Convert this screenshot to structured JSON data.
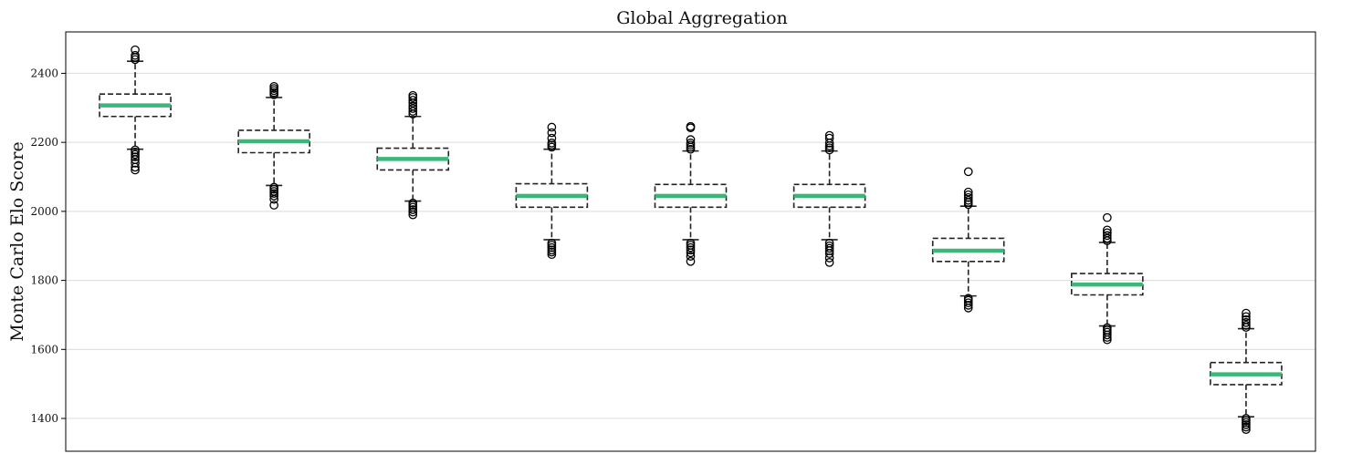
{
  "chart_data": {
    "type": "box",
    "title": "Global Aggregation",
    "xlabel": "",
    "ylabel": "Monte Carlo Elo Score",
    "ylim": [
      1305,
      2520
    ],
    "yticks": [
      1400,
      1600,
      1800,
      2000,
      2200,
      2400
    ],
    "grid": "horizontal",
    "median_color": "#3cb77a",
    "boxes": [
      {
        "q1": 2275,
        "median": 2307,
        "q3": 2340,
        "whisker_low": 2180,
        "whisker_high": 2435,
        "outliers": [
          2120,
          2128,
          2140,
          2150,
          2158,
          2165,
          2172,
          2178,
          2440,
          2446,
          2452,
          2468
        ]
      },
      {
        "q1": 2170,
        "median": 2203,
        "q3": 2235,
        "whisker_low": 2075,
        "whisker_high": 2330,
        "outliers": [
          2018,
          2035,
          2045,
          2052,
          2058,
          2064,
          2070,
          2338,
          2344,
          2350,
          2356,
          2362
        ]
      },
      {
        "q1": 2120,
        "median": 2152,
        "q3": 2183,
        "whisker_low": 2030,
        "whisker_high": 2275,
        "outliers": [
          1990,
          1998,
          2005,
          2012,
          2018,
          2024,
          2282,
          2290,
          2298,
          2305,
          2314,
          2322,
          2330,
          2336
        ]
      },
      {
        "q1": 2012,
        "median": 2045,
        "q3": 2080,
        "whisker_low": 1918,
        "whisker_high": 2180,
        "outliers": [
          1875,
          1882,
          1888,
          1895,
          1902,
          1908,
          2186,
          2192,
          2198,
          2212,
          2228,
          2244
        ]
      },
      {
        "q1": 2012,
        "median": 2045,
        "q3": 2078,
        "whisker_low": 1918,
        "whisker_high": 2175,
        "outliers": [
          1855,
          1870,
          1880,
          1888,
          1895,
          1902,
          1908,
          2180,
          2186,
          2192,
          2198,
          2208,
          2242,
          2246
        ]
      },
      {
        "q1": 2012,
        "median": 2045,
        "q3": 2078,
        "whisker_low": 1918,
        "whisker_high": 2175,
        "outliers": [
          1852,
          1865,
          1878,
          1886,
          1893,
          1900,
          1908,
          2178,
          2184,
          2190,
          2198,
          2212,
          2220
        ]
      },
      {
        "q1": 1855,
        "median": 1886,
        "q3": 1922,
        "whisker_low": 1755,
        "whisker_high": 2015,
        "outliers": [
          1720,
          1728,
          1735,
          1742,
          1748,
          2020,
          2026,
          2032,
          2040,
          2048,
          2056,
          2115
        ]
      },
      {
        "q1": 1758,
        "median": 1788,
        "q3": 1820,
        "whisker_low": 1668,
        "whisker_high": 1910,
        "outliers": [
          1628,
          1635,
          1642,
          1650,
          1656,
          1663,
          1915,
          1922,
          1930,
          1938,
          1946,
          1982
        ]
      },
      {
        "q1": 1498,
        "median": 1528,
        "q3": 1562,
        "whisker_low": 1405,
        "whisker_high": 1660,
        "outliers": [
          1368,
          1375,
          1382,
          1388,
          1394,
          1400,
          1664,
          1670,
          1678,
          1686,
          1695,
          1705
        ]
      }
    ]
  }
}
